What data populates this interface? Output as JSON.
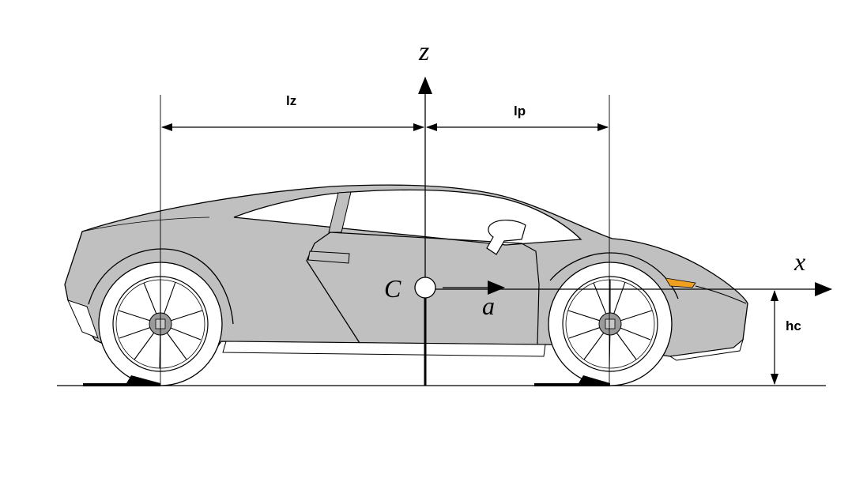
{
  "diagram": {
    "labels": {
      "z_axis": "z",
      "x_axis": "x",
      "center": "C",
      "acceleration": "a",
      "rear_length": "lz",
      "front_length": "lp",
      "cg_height": "hc"
    },
    "colors": {
      "body": "#c0c0c0",
      "line": "#000000",
      "tire": "#ffffff",
      "hub": "#9a9a9a",
      "indicator": "#f0a020"
    }
  }
}
